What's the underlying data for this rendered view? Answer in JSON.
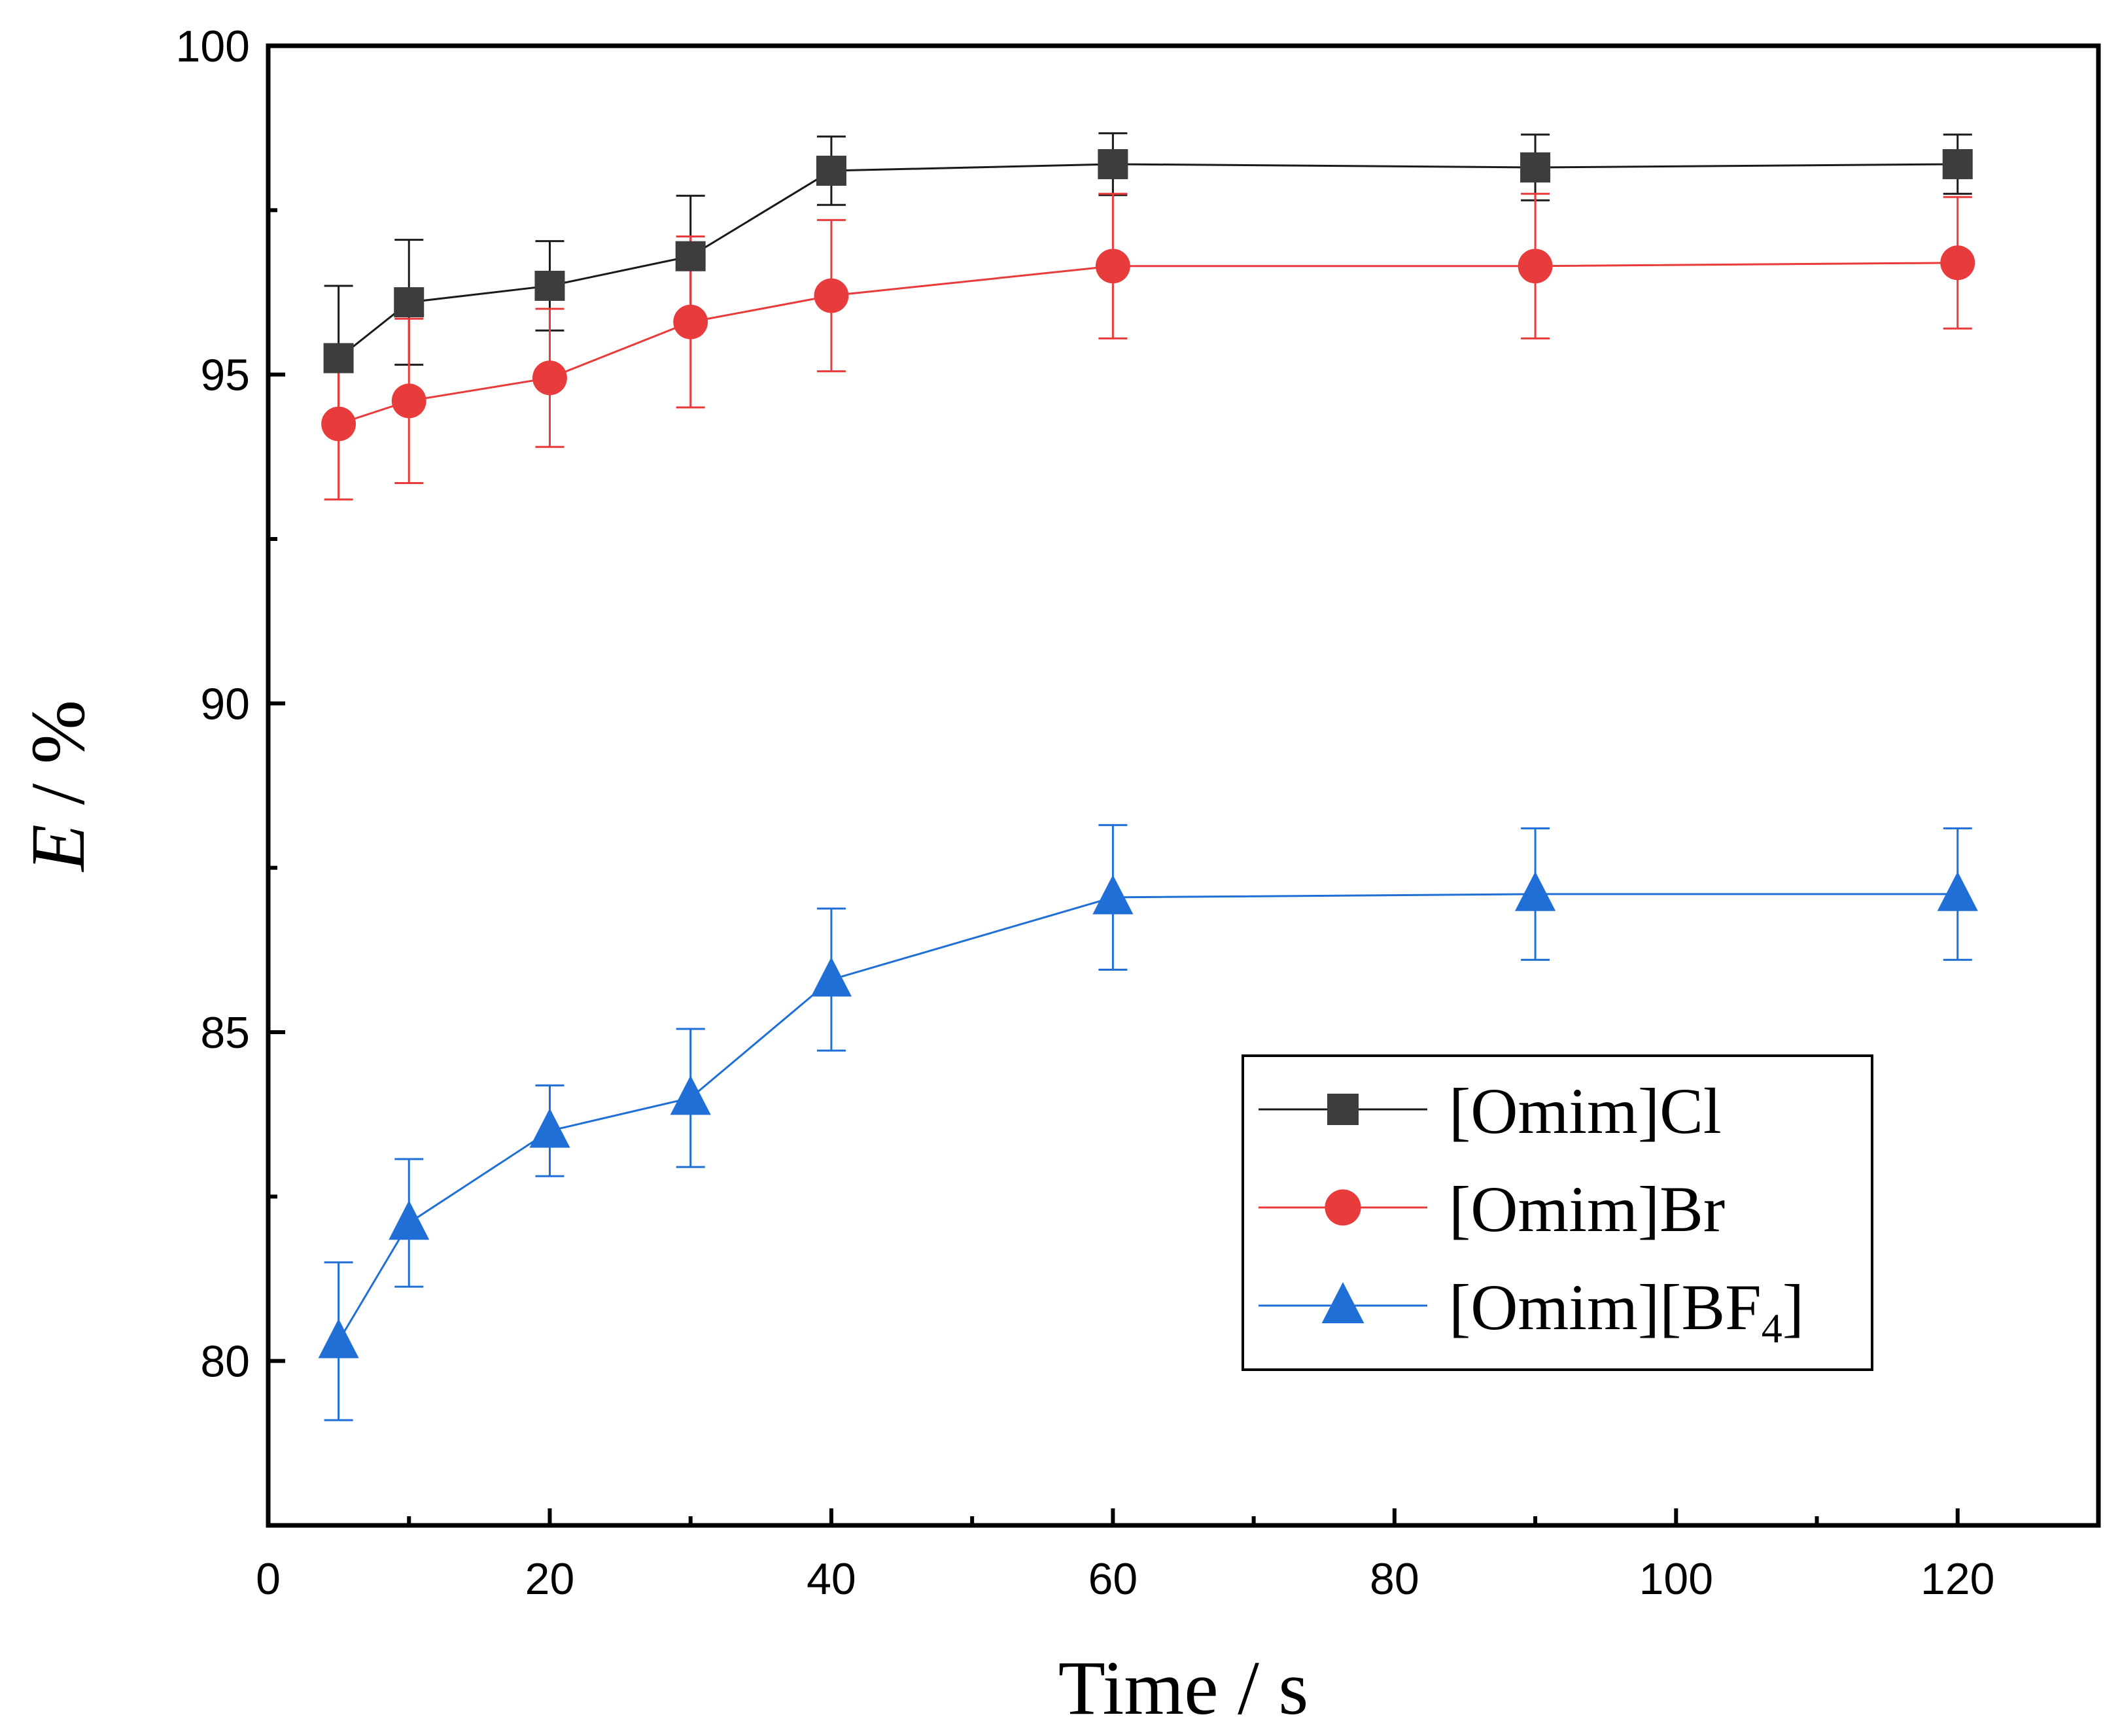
{
  "chart_data": {
    "type": "line",
    "xlabel": "Time / s",
    "ylabel_symbol": "E",
    "ylabel_unit": " / %",
    "xlim": [
      0,
      130
    ],
    "ylim": [
      77.5,
      100
    ],
    "xticks": [
      0,
      20,
      40,
      60,
      80,
      100,
      120
    ],
    "yticks": [
      80,
      85,
      90,
      95,
      100
    ],
    "grid": false,
    "legend_position": "bottom-right",
    "series": [
      {
        "name": "[Omim]Cl",
        "marker": "square",
        "color": "#3d3d3d",
        "line_color": "#1a1a1a",
        "x": [
          5,
          10,
          20,
          30,
          40,
          60,
          90,
          120
        ],
        "y": [
          95.25,
          96.1,
          96.35,
          96.8,
          98.1,
          98.2,
          98.15,
          98.2
        ],
        "err": [
          1.1,
          0.95,
          0.68,
          0.92,
          0.52,
          0.47,
          0.5,
          0.45
        ]
      },
      {
        "name": "[Omim]Br",
        "marker": "circle",
        "color": "#e83b3b",
        "line_color": "#e83b3b",
        "x": [
          5,
          10,
          20,
          30,
          40,
          60,
          90,
          120
        ],
        "y": [
          94.25,
          94.6,
          94.95,
          95.8,
          96.2,
          96.65,
          96.65,
          96.7
        ],
        "err": [
          1.15,
          1.25,
          1.05,
          1.3,
          1.15,
          1.1,
          1.1,
          1.0
        ]
      },
      {
        "name": "[Omim][BF4]",
        "name_base": "[Omim][BF",
        "name_sub": "4",
        "name_tail": "]",
        "marker": "triangle",
        "color": "#1f6fd6",
        "line_color": "#1f6fd6",
        "x": [
          5,
          10,
          20,
          30,
          40,
          60,
          90,
          120
        ],
        "y": [
          80.3,
          82.1,
          83.5,
          84.0,
          85.8,
          87.05,
          87.1,
          87.1
        ],
        "err": [
          1.2,
          0.97,
          0.69,
          1.05,
          1.08,
          1.1,
          1.0,
          1.0
        ]
      }
    ]
  }
}
